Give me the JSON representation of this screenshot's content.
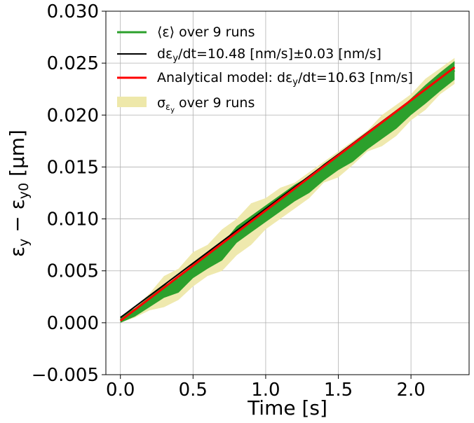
{
  "chart_data": {
    "type": "line",
    "xlabel": "Time [s]",
    "ylabel": "ε",
    "ylabel_sub_1": "y",
    "ylabel_mid": " − ε",
    "ylabel_sub_2": "y0",
    "ylabel_tail": " [µm]",
    "xlim": [
      -0.1,
      2.4
    ],
    "ylim": [
      -0.005,
      0.03
    ],
    "grid": true,
    "legend_position": "top-left",
    "x_ticks": [
      0.0,
      0.5,
      1.0,
      1.5,
      2.0
    ],
    "x_tick_labels": [
      "0.0",
      "0.5",
      "1.0",
      "1.5",
      "2.0"
    ],
    "y_ticks": [
      -0.005,
      0.0,
      0.005,
      0.01,
      0.015,
      0.02,
      0.025,
      0.03
    ],
    "y_tick_labels": [
      "−0.005",
      "0.000",
      "0.005",
      "0.010",
      "0.015",
      "0.020",
      "0.025",
      "0.030"
    ],
    "legend": [
      {
        "label": "⟨ε⟩ over 9 runs",
        "color": "#2ca02c",
        "kind": "line"
      },
      {
        "label": "dε",
        "sub": "y",
        "tail": "/dt=10.48 [nm/s]±0.03 [nm/s]",
        "color": "#000000",
        "kind": "line"
      },
      {
        "label": "Analytical model: dε",
        "sub": "y",
        "tail": "/dt=10.63 [nm/s]",
        "color": "#ff0000",
        "kind": "line"
      },
      {
        "label": "σ",
        "sub": "ε",
        "subsub": "y",
        "tail": " over 9 runs",
        "color": "#eee8aa",
        "kind": "patch"
      }
    ],
    "series": [
      {
        "name": "⟨ε⟩ over 9 runs",
        "color": "#2ca02c",
        "x": [
          0.0,
          0.1,
          0.2,
          0.3,
          0.4,
          0.5,
          0.6,
          0.7,
          0.8,
          0.9,
          1.0,
          1.1,
          1.2,
          1.3,
          1.4,
          1.5,
          1.6,
          1.7,
          1.8,
          1.9,
          2.0,
          2.1,
          2.2,
          2.3
        ],
        "y": [
          0.0003,
          0.001,
          0.002,
          0.003,
          0.0036,
          0.005,
          0.006,
          0.0068,
          0.0085,
          0.0095,
          0.0105,
          0.0115,
          0.0125,
          0.0133,
          0.0145,
          0.0155,
          0.0163,
          0.0175,
          0.0185,
          0.0195,
          0.0208,
          0.022,
          0.0232,
          0.0243
        ],
        "spread": [
          0.0003,
          0.0004,
          0.0005,
          0.0006,
          0.0007,
          0.0007,
          0.0008,
          0.0008,
          0.0008,
          0.0008,
          0.0008,
          0.0008,
          0.0008,
          0.0008,
          0.0008,
          0.0008,
          0.0008,
          0.0008,
          0.0008,
          0.0008,
          0.0008,
          0.0009,
          0.0009,
          0.0009
        ]
      },
      {
        "name": "σ over 9 runs",
        "color": "#eee8aa",
        "x": [
          0.0,
          0.1,
          0.2,
          0.3,
          0.4,
          0.5,
          0.6,
          0.7,
          0.8,
          0.9,
          1.0,
          1.1,
          1.2,
          1.3,
          1.4,
          1.5,
          1.6,
          1.7,
          1.8,
          1.9,
          2.0,
          2.1,
          2.2,
          2.3
        ],
        "y_upper": [
          0.0006,
          0.0015,
          0.0028,
          0.0045,
          0.0052,
          0.0068,
          0.0075,
          0.009,
          0.01,
          0.0115,
          0.012,
          0.013,
          0.0135,
          0.0145,
          0.0155,
          0.0165,
          0.0175,
          0.0185,
          0.02,
          0.021,
          0.022,
          0.0235,
          0.0245,
          0.0255
        ],
        "y_lower": [
          0.0,
          0.0005,
          0.0012,
          0.0015,
          0.0022,
          0.0035,
          0.0045,
          0.005,
          0.0065,
          0.0075,
          0.009,
          0.01,
          0.011,
          0.012,
          0.0135,
          0.014,
          0.0152,
          0.0165,
          0.017,
          0.018,
          0.0195,
          0.0205,
          0.022,
          0.023
        ]
      },
      {
        "name": "dε/dt=10.48 [nm/s]±0.03 [nm/s]",
        "color": "#000000",
        "x": [
          0.0,
          2.3
        ],
        "y": [
          0.0005,
          0.0246
        ]
      },
      {
        "name": "Analytical model: dε/dt=10.63 [nm/s]",
        "color": "#ff0000",
        "x": [
          0.0,
          2.3
        ],
        "y": [
          0.0002,
          0.0246
        ]
      }
    ]
  }
}
